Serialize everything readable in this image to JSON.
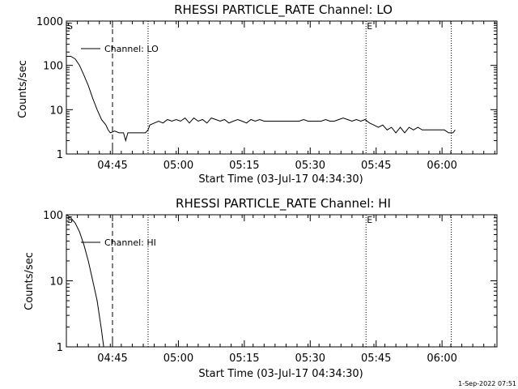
{
  "footer": {
    "timestamp": "1-Sep-2022 07:51"
  },
  "chart_data": [
    {
      "type": "line",
      "title": "RHESSI PARTICLE_RATE Channel: LO",
      "xlabel": "Start Time (03-Jul-17 04:34:30)",
      "ylabel": "Counts/sec",
      "yscale": "log",
      "ylim": [
        1,
        1000
      ],
      "xlim_minutes_after_start": [
        0,
        98
      ],
      "x_tick_labels": [
        "04:45",
        "05:00",
        "05:15",
        "05:30",
        "05:45",
        "06:00"
      ],
      "x_tick_minutes": [
        10.5,
        25.5,
        40.5,
        55.5,
        70.5,
        85.5
      ],
      "y_tick_labels": [
        "1",
        "10",
        "100",
        "1000"
      ],
      "y_tick_values": [
        1,
        10,
        100,
        1000
      ],
      "legend": "Channel: LO",
      "markers": [
        {
          "label": "S",
          "minute": 0
        },
        {
          "label": "E",
          "minute": 68.2
        }
      ],
      "reference_lines_minutes": {
        "dashed": [
          10.5
        ],
        "dotted": [
          18.6,
          68.2,
          87.6
        ]
      },
      "series": [
        {
          "name": "Channel: LO",
          "x": [
            0,
            1,
            2,
            3,
            4,
            5,
            6,
            7,
            8,
            9,
            9.5,
            10,
            11,
            12,
            13,
            13.5,
            14,
            15,
            16,
            17,
            18,
            18.6,
            19,
            20,
            21,
            22,
            23,
            24,
            25,
            26,
            27,
            28,
            29,
            30,
            31,
            32,
            33,
            34,
            35,
            36,
            37,
            38,
            39,
            40,
            41,
            42,
            43,
            44,
            45,
            46,
            47,
            48,
            49,
            50,
            51,
            52,
            53,
            54,
            55,
            56,
            57,
            58,
            59,
            60,
            61,
            62,
            63,
            64,
            65,
            66,
            67,
            68,
            69,
            70,
            71,
            72,
            73,
            74,
            75,
            76,
            77,
            78,
            79,
            80,
            81,
            82,
            83,
            84,
            85,
            86,
            87,
            88,
            88.5
          ],
          "y": [
            160,
            160,
            140,
            100,
            60,
            35,
            18,
            10,
            6,
            4.5,
            3.5,
            3.0,
            3.3,
            3.0,
            3.0,
            2.0,
            3.0,
            3.0,
            3.0,
            3.0,
            3.0,
            3.5,
            4.5,
            5.0,
            5.5,
            5.0,
            6.0,
            5.5,
            6.0,
            5.5,
            6.5,
            5.0,
            6.5,
            5.5,
            6.0,
            5.0,
            6.5,
            6.0,
            5.5,
            6.0,
            5.0,
            5.5,
            6.0,
            5.5,
            5.0,
            6.0,
            5.5,
            6.0,
            5.5,
            5.5,
            5.5,
            5.5,
            5.5,
            5.5,
            5.5,
            5.5,
            5.5,
            6.0,
            5.5,
            5.5,
            5.5,
            5.5,
            6.0,
            5.5,
            5.5,
            6.0,
            6.5,
            6.0,
            5.5,
            6.0,
            5.5,
            6.0,
            5.0,
            4.5,
            4.0,
            4.5,
            3.5,
            4.0,
            3.0,
            4.0,
            3.0,
            4.0,
            3.5,
            4.0,
            3.5,
            3.5,
            3.5,
            3.5,
            3.5,
            3.5,
            3.0,
            3.0,
            3.5
          ]
        }
      ]
    },
    {
      "type": "line",
      "title": "RHESSI PARTICLE_RATE Channel: HI",
      "xlabel": "Start Time (03-Jul-17 04:34:30)",
      "ylabel": "Counts/sec",
      "yscale": "log",
      "ylim": [
        1,
        100
      ],
      "xlim_minutes_after_start": [
        0,
        98
      ],
      "x_tick_labels": [
        "04:45",
        "05:00",
        "05:15",
        "05:30",
        "05:45",
        "06:00"
      ],
      "x_tick_minutes": [
        10.5,
        25.5,
        40.5,
        55.5,
        70.5,
        85.5
      ],
      "y_tick_labels": [
        "1",
        "10",
        "100"
      ],
      "y_tick_values": [
        1,
        10,
        100
      ],
      "legend": "Channel: HI",
      "markers": [
        {
          "label": "S",
          "minute": 0
        },
        {
          "label": "E",
          "minute": 68.2
        }
      ],
      "reference_lines_minutes": {
        "dashed": [
          10.5
        ],
        "dotted": [
          18.6,
          68.2,
          87.6
        ]
      },
      "series": [
        {
          "name": "Channel: HI",
          "x": [
            0,
            1,
            2,
            3,
            4,
            5,
            6,
            7,
            7.5,
            8,
            8.5
          ],
          "y": [
            100,
            90,
            75,
            55,
            35,
            20,
            10,
            5,
            3,
            1.8,
            1.0
          ]
        }
      ]
    }
  ]
}
